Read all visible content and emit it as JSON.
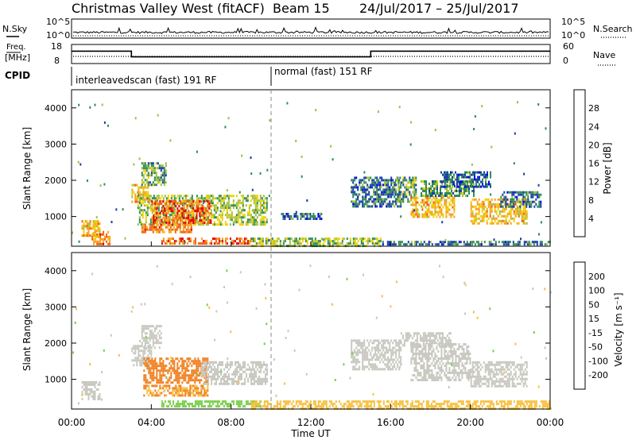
{
  "chart_data": {
    "type": "heatmap",
    "title": {
      "station": "Christmas Valley West (fitACF)",
      "beam": "Beam 15",
      "dates": "24/Jul/2017 – 25/Jul/2017"
    },
    "xlabel": "Time UT",
    "x_ticks": [
      "00:00",
      "04:00",
      "08:00",
      "12:00",
      "16:00",
      "20:00",
      "00:00"
    ],
    "x_range_hours": [
      0,
      24
    ],
    "time_marker_hours": 10,
    "noise_panel": {
      "left_label": "N.Sky",
      "left_ticks": [
        "10^5",
        "10^0"
      ],
      "right_label": "N.Search",
      "right_ticks": [
        "10^5",
        "10^0"
      ]
    },
    "freq_panel": {
      "left_label_top": "Freq.",
      "left_label_bottom": "[MHz]",
      "left_ticks": [
        "18",
        "8"
      ],
      "right_label": "Nave",
      "right_ticks": [
        "60",
        "0"
      ],
      "freq_steps": [
        {
          "from_h": 0,
          "to_h": 3,
          "value_mhz": 14.5
        },
        {
          "from_h": 3,
          "to_h": 15,
          "value_mhz": 11.5
        },
        {
          "from_h": 15,
          "to_h": 24,
          "value_mhz": 14.5
        }
      ]
    },
    "cpid": {
      "label": "CPID",
      "segments": [
        {
          "from_h": 0,
          "to_h": 10,
          "text": "interleavedscan (fast) 191 RF"
        },
        {
          "from_h": 10,
          "to_h": 24,
          "text": "normal (fast) 151 RF"
        }
      ]
    },
    "y_label": "Slant Range [km]",
    "y_ticks": [
      1000,
      2000,
      3000,
      4000
    ],
    "y_range_km": [
      180,
      4500
    ],
    "power_panel": {
      "colorbar_label": "Power [dB]",
      "colorbar_ticks": [
        4,
        8,
        12,
        16,
        20,
        24,
        28
      ],
      "colorscale": [
        "#0000f0",
        "#1a3ea8",
        "#2e8b57",
        "#a0c040",
        "#f0d000",
        "#f7a020",
        "#f06010",
        "#e00000"
      ],
      "regions": [
        {
          "t0": 0.5,
          "t1": 1.4,
          "r0": 500,
          "r1": 900,
          "p": 20
        },
        {
          "t0": 1.0,
          "t1": 1.9,
          "r0": 250,
          "r1": 600,
          "p": 24
        },
        {
          "t0": 3.0,
          "t1": 3.9,
          "r0": 1400,
          "r1": 1900,
          "p": 20
        },
        {
          "t0": 3.5,
          "t1": 4.7,
          "r0": 1900,
          "r1": 2500,
          "p": 12
        },
        {
          "t0": 3.3,
          "t1": 9.8,
          "r0": 800,
          "r1": 1600,
          "p": 14
        },
        {
          "t0": 4.0,
          "t1": 7.0,
          "r0": 800,
          "r1": 1450,
          "p": 26
        },
        {
          "t0": 3.5,
          "t1": 6.0,
          "r0": 550,
          "r1": 800,
          "p": 24
        },
        {
          "t0": 4.5,
          "t1": 9.0,
          "r0": 280,
          "r1": 420,
          "p": 26
        },
        {
          "t0": 9.0,
          "t1": 15.5,
          "r0": 200,
          "r1": 420,
          "p": 14
        },
        {
          "t0": 15.5,
          "t1": 24.0,
          "r0": 200,
          "r1": 330,
          "p": 8
        },
        {
          "t0": 10.5,
          "t1": 12.5,
          "r0": 950,
          "r1": 1100,
          "p": 8
        },
        {
          "t0": 14.0,
          "t1": 16.5,
          "r0": 1250,
          "r1": 2100,
          "p": 8
        },
        {
          "t0": 16.2,
          "t1": 17.3,
          "r0": 1400,
          "r1": 2100,
          "p": 12
        },
        {
          "t0": 17.0,
          "t1": 19.2,
          "r0": 1000,
          "r1": 1550,
          "p": 20
        },
        {
          "t0": 17.5,
          "t1": 20.2,
          "r0": 1550,
          "r1": 2000,
          "p": 12
        },
        {
          "t0": 18.5,
          "t1": 21.0,
          "r0": 1850,
          "r1": 2250,
          "p": 8
        },
        {
          "t0": 20.0,
          "t1": 22.8,
          "r0": 800,
          "r1": 1500,
          "p": 20
        },
        {
          "t0": 21.5,
          "t1": 23.5,
          "r0": 1300,
          "r1": 1700,
          "p": 8
        }
      ]
    },
    "velocity_panel": {
      "colorbar_label": "Velocity [m s⁻¹]",
      "colorbar_ticks": [
        200,
        100,
        50,
        15,
        -15,
        -50,
        -100,
        -200
      ],
      "colorscale": [
        "#0a0ad0",
        "#2a6090",
        "#30a040",
        "#7ad04a",
        "#c8c8c0",
        "#f7c040",
        "#f08020",
        "#f04010",
        "#e00000"
      ],
      "regions": [
        {
          "t0": 0.5,
          "t1": 1.4,
          "r0": 450,
          "r1": 950,
          "v": 0
        },
        {
          "t0": 3.0,
          "t1": 4.0,
          "r0": 1400,
          "r1": 1950,
          "v": 0
        },
        {
          "t0": 3.5,
          "t1": 4.5,
          "r0": 1900,
          "r1": 2500,
          "v": 0
        },
        {
          "t0": 3.6,
          "t1": 6.8,
          "r0": 900,
          "r1": 1600,
          "v": -60
        },
        {
          "t0": 3.6,
          "t1": 6.8,
          "r0": 550,
          "r1": 850,
          "v": -50
        },
        {
          "t0": 6.5,
          "t1": 9.8,
          "r0": 850,
          "r1": 1500,
          "v": 0
        },
        {
          "t0": 4.5,
          "t1": 9.5,
          "r0": 280,
          "r1": 420,
          "v": 40
        },
        {
          "t0": 9.0,
          "t1": 24.0,
          "r0": 200,
          "r1": 420,
          "v": -30
        },
        {
          "t0": 14.0,
          "t1": 16.5,
          "r0": 1250,
          "r1": 2100,
          "v": 0
        },
        {
          "t0": 17.0,
          "t1": 20.0,
          "r0": 1000,
          "r1": 2000,
          "v": 0
        },
        {
          "t0": 16.5,
          "t1": 19.0,
          "r0": 1950,
          "r1": 2300,
          "v": 0
        },
        {
          "t0": 20.0,
          "t1": 22.8,
          "r0": 800,
          "r1": 1500,
          "v": 0
        }
      ]
    }
  }
}
